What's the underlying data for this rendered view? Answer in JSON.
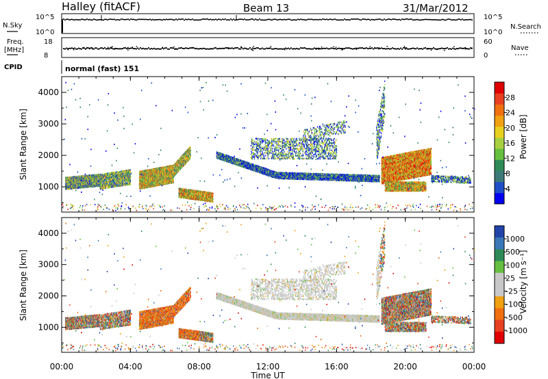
{
  "header": {
    "station": "Halley (fitACF)",
    "beam": "Beam 13",
    "date": "31/Mar/2012"
  },
  "strip_labels": {
    "nsky": "N.Sky",
    "nsky_hi": "10^5",
    "nsky_lo": "10^0",
    "nsearch": "N.Search",
    "nsearch_hi": "10^5",
    "nsearch_lo": "10^0",
    "freq_line1": "Freq.",
    "freq_line2": "[MHz]",
    "freq_hi": "18",
    "freq_lo": "8",
    "nave": "Nave",
    "nave_hi": "60",
    "nave_lo": "0",
    "cpid": "CPID",
    "cpid_value": "normal (fast) 151"
  },
  "chart_data": [
    {
      "type": "heatmap",
      "ylabel": "Slant Range [km]",
      "xlabel": "Time UT",
      "x_ticks": [
        "00:00",
        "04:00",
        "08:00",
        "12:00",
        "16:00",
        "20:00",
        "00:00"
      ],
      "y_ticks": [
        "1000",
        "2000",
        "3000",
        "4000"
      ],
      "ylim": [
        200,
        4500
      ],
      "colorbar": {
        "label": "Power [dB]",
        "ticks": [
          "4",
          "8",
          "12",
          "16",
          "20",
          "24",
          "28"
        ],
        "colors": [
          "#0000ee",
          "#1e4fc8",
          "#3c7a7a",
          "#2e8b57",
          "#66c040",
          "#a8d040",
          "#e8d020",
          "#f0a010",
          "#f07010",
          "#e84020",
          "#e00000"
        ]
      }
    },
    {
      "type": "heatmap",
      "ylabel": "Slant Range [km]",
      "xlabel": "Time UT",
      "x_ticks": [
        "00:00",
        "04:00",
        "08:00",
        "12:00",
        "16:00",
        "20:00",
        "00:00"
      ],
      "y_ticks": [
        "1000",
        "2000",
        "3000",
        "4000"
      ],
      "ylim": [
        200,
        4500
      ],
      "colorbar": {
        "label": "Velocity [m s⁻¹]",
        "ticks": [
          "1000",
          "500",
          "100",
          "25",
          "-25",
          "-100",
          "-500",
          "-1000"
        ],
        "colors": [
          "#2244aa",
          "#3a78b8",
          "#2e8b57",
          "#66c040",
          "#c8c8c8",
          "#c8c8c8",
          "#f0a010",
          "#f07010",
          "#e84020",
          "#e00000"
        ]
      }
    }
  ]
}
